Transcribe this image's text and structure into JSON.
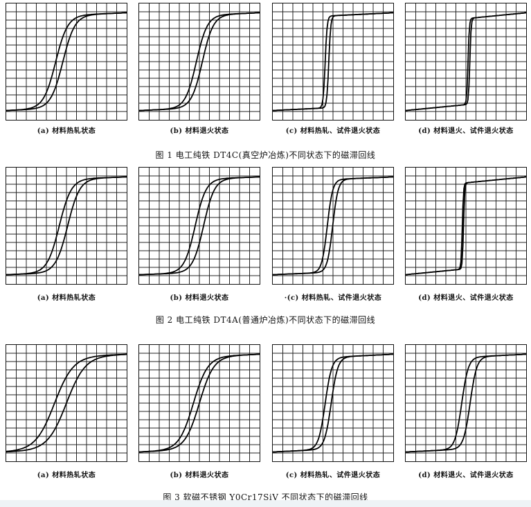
{
  "figures": [
    {
      "caption": "图 1    电工纯铁 DT4C(真空炉冶炼)不同状态下的磁滞回线",
      "panels": [
        {
          "label": "(a) 材料热轧状态",
          "steepness": 5,
          "width": 0.06,
          "offset": -0.12,
          "tilt": 0.05
        },
        {
          "label": "(b) 材料退火状态",
          "steepness": 5.5,
          "width": 0.05,
          "offset": 0.0,
          "tilt": 0.05
        },
        {
          "label": "(c) 材料热轧、试件退火状态",
          "steepness": 30,
          "width": 0.03,
          "offset": -0.1,
          "tilt": 0.06
        },
        {
          "label": "(d) 材料退火、试件退火状态",
          "steepness": 45,
          "width": 0.015,
          "offset": 0.05,
          "tilt": 0.12
        }
      ]
    },
    {
      "caption": "图 2    电工纯铁 DT4A(普通炉冶炼)不同状态下的磁滞回线",
      "panels": [
        {
          "label": "(a) 材料热轧状态",
          "steepness": 5,
          "width": 0.07,
          "offset": -0.05,
          "tilt": 0.04
        },
        {
          "label": "(b) 材料退火状态",
          "steepness": 5.5,
          "width": 0.07,
          "offset": 0.0,
          "tilt": 0.04
        },
        {
          "label": "·(c) 材料热轧、试件退火状态",
          "steepness": 11,
          "width": 0.045,
          "offset": -0.05,
          "tilt": 0.05
        },
        {
          "label": "(d) 材料退火、试件退火状态",
          "steepness": 50,
          "width": 0.01,
          "offset": -0.05,
          "tilt": 0.12
        }
      ]
    },
    {
      "caption": "图 3    软磁不锈钢 Y0Cr17SiV 不同状态下的磁滞回线",
      "panels": [
        {
          "label": "(a) 材料热轧状态",
          "steepness": 3.2,
          "width": 0.1,
          "offset": -0.1,
          "tilt": 0.04
        },
        {
          "label": "(b) 材料退火状态",
          "steepness": 4.2,
          "width": 0.05,
          "offset": -0.05,
          "tilt": 0.05
        },
        {
          "label": "(c) 材料热轧、试件退火状态",
          "steepness": 9,
          "width": 0.05,
          "offset": -0.08,
          "tilt": 0.06
        },
        {
          "label": "(d) 材料退火、试件退火状态",
          "steepness": 9,
          "width": 0.07,
          "offset": 0.0,
          "tilt": 0.06
        }
      ]
    }
  ]
}
